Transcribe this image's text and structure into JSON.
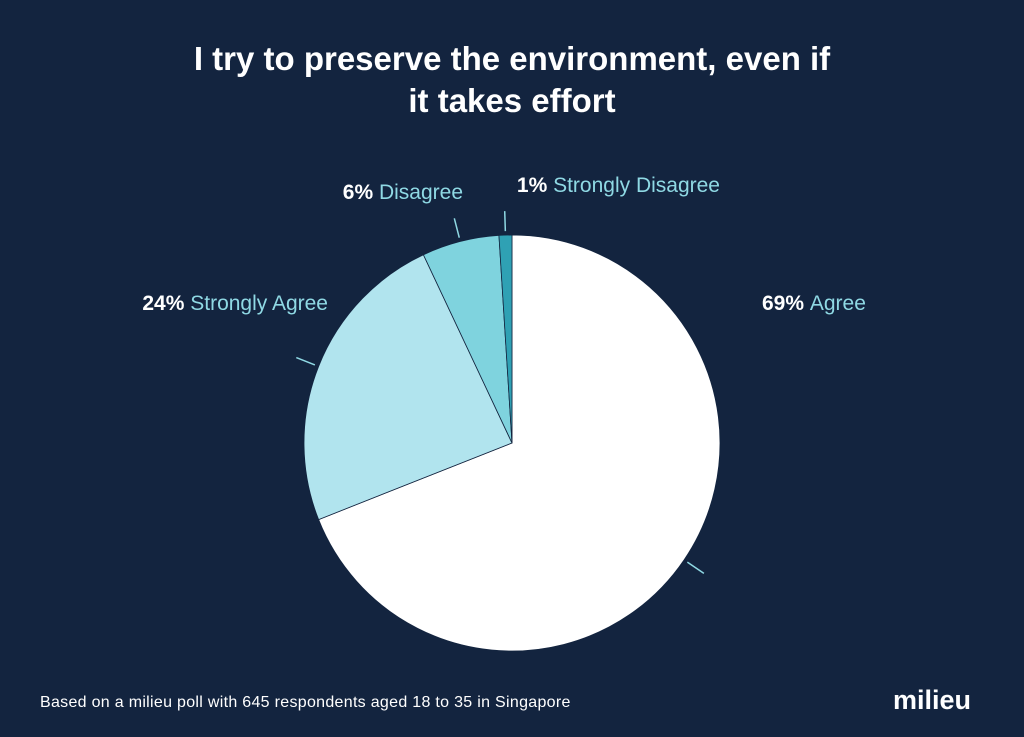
{
  "chart_data": {
    "type": "pie",
    "title_lines": [
      "I try to preserve the environment, even if",
      "it takes effort"
    ],
    "slices": [
      {
        "percent_label": "69%",
        "label": "Agree",
        "value": 69,
        "color": "#ffffff"
      },
      {
        "percent_label": "24%",
        "label": "Strongly Agree",
        "value": 24,
        "color": "#b1e4ee"
      },
      {
        "percent_label": "6%",
        "label": "Disagree",
        "value": 6,
        "color": "#7fd3de"
      },
      {
        "percent_label": "1%",
        "label": "Strongly Disagree",
        "value": 1,
        "color": "#2fa1b4"
      }
    ],
    "label_color": "#8fd9e4",
    "percent_color": "#ffffff"
  },
  "footer": "Based on a milieu poll with 645 respondents aged 18 to 35 in Singapore",
  "logo": "milieu",
  "colors": {
    "background": "#13243f"
  }
}
